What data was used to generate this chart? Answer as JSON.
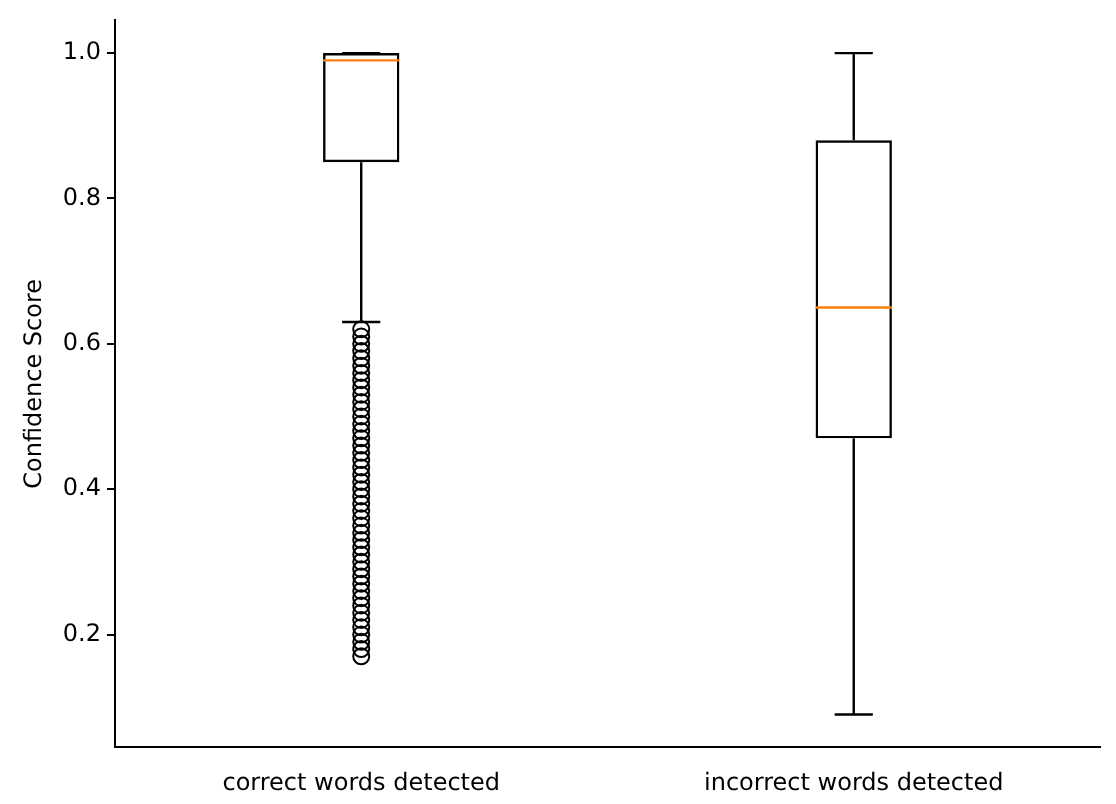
{
  "chart_data": {
    "type": "box",
    "ylabel": "Confidence Score",
    "categories": [
      "correct words detected",
      "incorrect words detected"
    ],
    "ylim": [
      0.045,
      1.045
    ],
    "yticks": [
      0.2,
      0.4,
      0.6,
      0.8,
      {
        "value": 1,
        "label": "1.0"
      }
    ],
    "grid": false,
    "legend": false,
    "marker": "circle",
    "series": [
      {
        "color": "#000000",
        "boxes": [
          {
            "low": 0.63,
            "q1": 0.85,
            "median": 0.99,
            "q3": 1.0,
            "high": 1.0,
            "outliers": [
              0.17,
              0.18,
              0.19,
              0.2,
              0.21,
              0.22,
              0.23,
              0.24,
              0.25,
              0.26,
              0.27,
              0.28,
              0.29,
              0.3,
              0.31,
              0.32,
              0.33,
              0.34,
              0.35,
              0.36,
              0.37,
              0.38,
              0.39,
              0.4,
              0.41,
              0.42,
              0.43,
              0.44,
              0.45,
              0.46,
              0.47,
              0.48,
              0.49,
              0.5,
              0.51,
              0.52,
              0.53,
              0.54,
              0.55,
              0.56,
              0.57,
              0.58,
              0.59,
              0.6,
              0.61,
              0.62
            ]
          },
          {
            "low": 0.09,
            "q1": 0.47,
            "median": 0.65,
            "q3": 0.88,
            "high": 1.0
          }
        ]
      }
    ]
  }
}
